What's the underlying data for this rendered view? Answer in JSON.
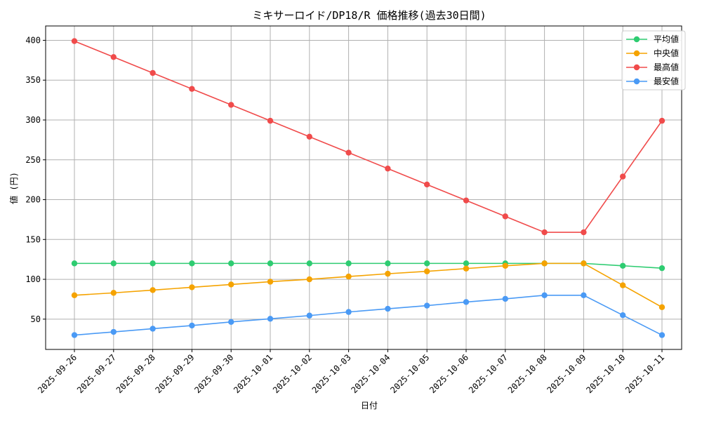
{
  "chart_data": {
    "type": "line",
    "title": "ミキサーロイド/DP18/R 価格推移(過去30日間)",
    "xlabel": "日付",
    "ylabel": "値 (円)",
    "categories": [
      "2025-09-26",
      "2025-09-27",
      "2025-09-28",
      "2025-09-29",
      "2025-09-30",
      "2025-10-01",
      "2025-10-02",
      "2025-10-03",
      "2025-10-04",
      "2025-10-05",
      "2025-10-06",
      "2025-10-07",
      "2025-10-08",
      "2025-10-09",
      "2025-10-10",
      "2025-10-11"
    ],
    "ylim": [
      12,
      418
    ],
    "yticks": [
      50,
      100,
      150,
      200,
      250,
      300,
      350,
      400
    ],
    "grid": true,
    "legend_position": "top-right",
    "series": [
      {
        "name": "平均値",
        "color": "#2ecc71",
        "values": [
          120,
          120,
          120,
          120,
          120,
          120,
          120,
          120,
          120,
          120,
          120,
          120,
          120,
          120,
          117,
          114
        ]
      },
      {
        "name": "中央値",
        "color": "#f5a300",
        "values": [
          80,
          83,
          86.5,
          90,
          93.5,
          97,
          100,
          103.5,
          107,
          110,
          113.5,
          117,
          120,
          120,
          92.5,
          65
        ]
      },
      {
        "name": "最高値",
        "color": "#f04b4b",
        "values": [
          399,
          379,
          359,
          339,
          319,
          299,
          279,
          259,
          239,
          219,
          199,
          179,
          159,
          159,
          229,
          299
        ]
      },
      {
        "name": "最安値",
        "color": "#4a9af5",
        "values": [
          30,
          34,
          38,
          42,
          46.5,
          50.5,
          54.5,
          59,
          63,
          67,
          71.5,
          75.5,
          80,
          80,
          55,
          30
        ]
      }
    ]
  }
}
